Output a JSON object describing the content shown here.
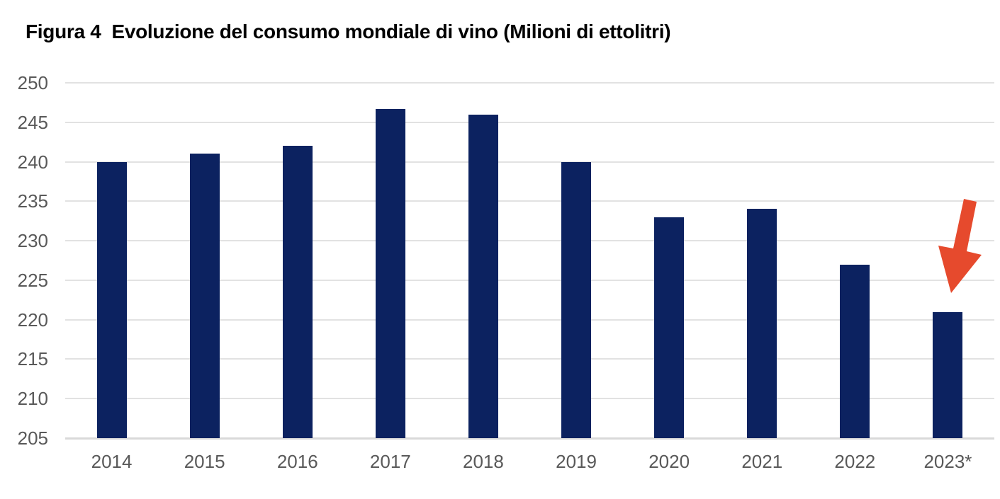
{
  "figure": {
    "title": "Figura 4  Evoluzione del consumo mondiale di vino (Milioni di ettolitri)"
  },
  "chart_data": {
    "type": "bar",
    "title": "Figura 4  Evoluzione del consumo mondiale di vino (Milioni di ettolitri)",
    "categories": [
      "2014",
      "2015",
      "2016",
      "2017",
      "2018",
      "2019",
      "2020",
      "2021",
      "2022",
      "2023*"
    ],
    "values": [
      240,
      241,
      242,
      246.7,
      246,
      240,
      233,
      234,
      227,
      221
    ],
    "xlabel": "",
    "ylabel": "",
    "ylim": [
      205,
      250
    ],
    "yticks": [
      205,
      210,
      215,
      220,
      225,
      230,
      235,
      240,
      245,
      250
    ],
    "grid": "horizontal",
    "legend": "none",
    "annotation": {
      "type": "arrow",
      "points_to": "2023*",
      "direction": "down-left",
      "color": "#e64a2d"
    }
  },
  "colors": {
    "background": "#ffffff",
    "bar": "#0c2260",
    "arrow": "#e64a2d",
    "axis_label": "#595959",
    "gridline": "#e2e2e2",
    "baseline": "#d9d9d9",
    "title": "#000000"
  }
}
